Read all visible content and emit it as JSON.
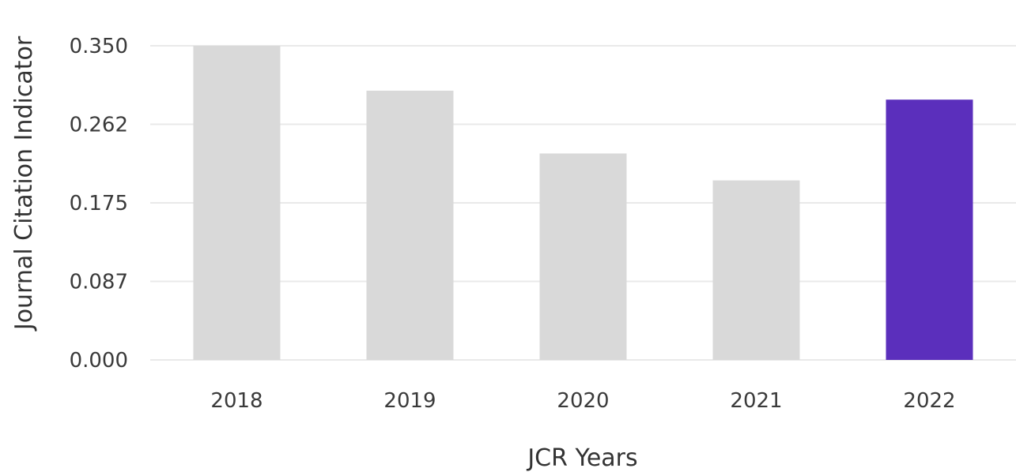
{
  "chart_data": {
    "type": "bar",
    "title": "",
    "xlabel": "JCR Years",
    "ylabel": "Journal Citation Indicator",
    "categories": [
      "2018",
      "2019",
      "2020",
      "2021",
      "2022"
    ],
    "values": [
      0.35,
      0.3,
      0.23,
      0.2,
      0.29
    ],
    "y_ticks": [
      "0.000",
      "0.087",
      "0.175",
      "0.262",
      "0.350"
    ],
    "ylim": [
      0,
      0.35
    ],
    "grid": true,
    "highlight_index": 4,
    "colors": {
      "default_bar": "#d9d9d9",
      "highlight_bar": "#5b2fbc"
    }
  }
}
